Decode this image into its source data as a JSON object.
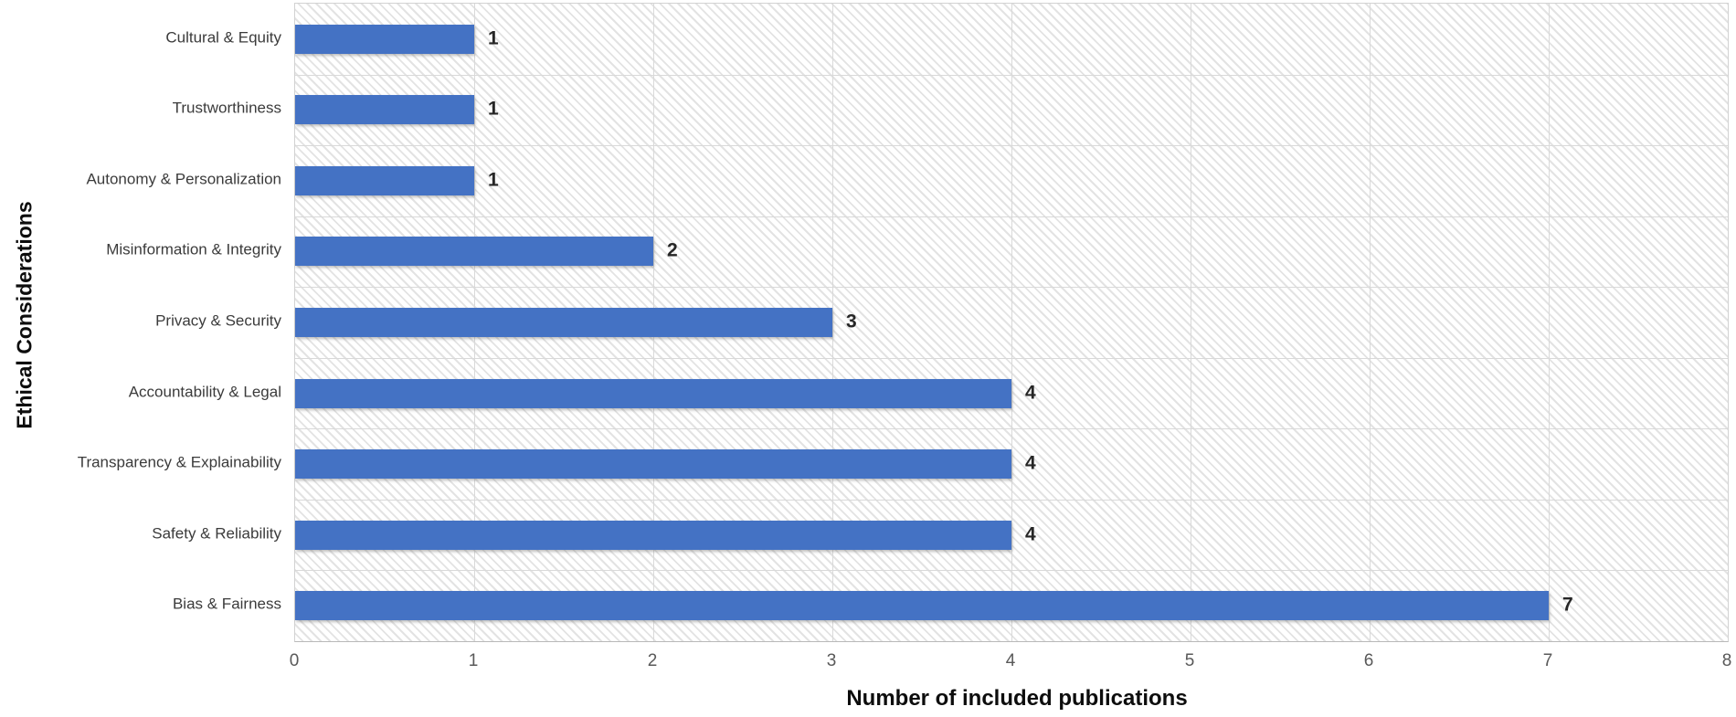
{
  "chart_data": {
    "type": "bar",
    "orientation": "horizontal",
    "title": "",
    "xlabel": "Number of included publications",
    "ylabel": "Ethical Considerations",
    "categories": [
      "Cultural & Equity",
      "Trustworthiness",
      "Autonomy & Personalization",
      "Misinformation & Integrity",
      "Privacy & Security",
      "Accountability & Legal",
      "Transparency & Explainability",
      "Safety & Reliability",
      "Bias & Fairness"
    ],
    "values": [
      1,
      1,
      1,
      2,
      3,
      4,
      4,
      4,
      7
    ],
    "data_labels": [
      "1",
      "1",
      "1",
      "2",
      "3",
      "4",
      "4",
      "4",
      "7"
    ],
    "xlim": [
      0,
      8
    ],
    "x_ticks": [
      0,
      1,
      2,
      3,
      4,
      5,
      6,
      7,
      8
    ],
    "grid": true,
    "legend": null,
    "plot_background": {
      "pattern": "diagonal-hatch",
      "hatch_line_color": "#e3e3e3"
    },
    "colors": {
      "bar": "#4472C4",
      "gridline": "#d9d9d9",
      "data_label": "#262626",
      "tick_label": "#595959",
      "category_label": "#3b3b3b",
      "axis_title": "#0d0d0d"
    }
  }
}
